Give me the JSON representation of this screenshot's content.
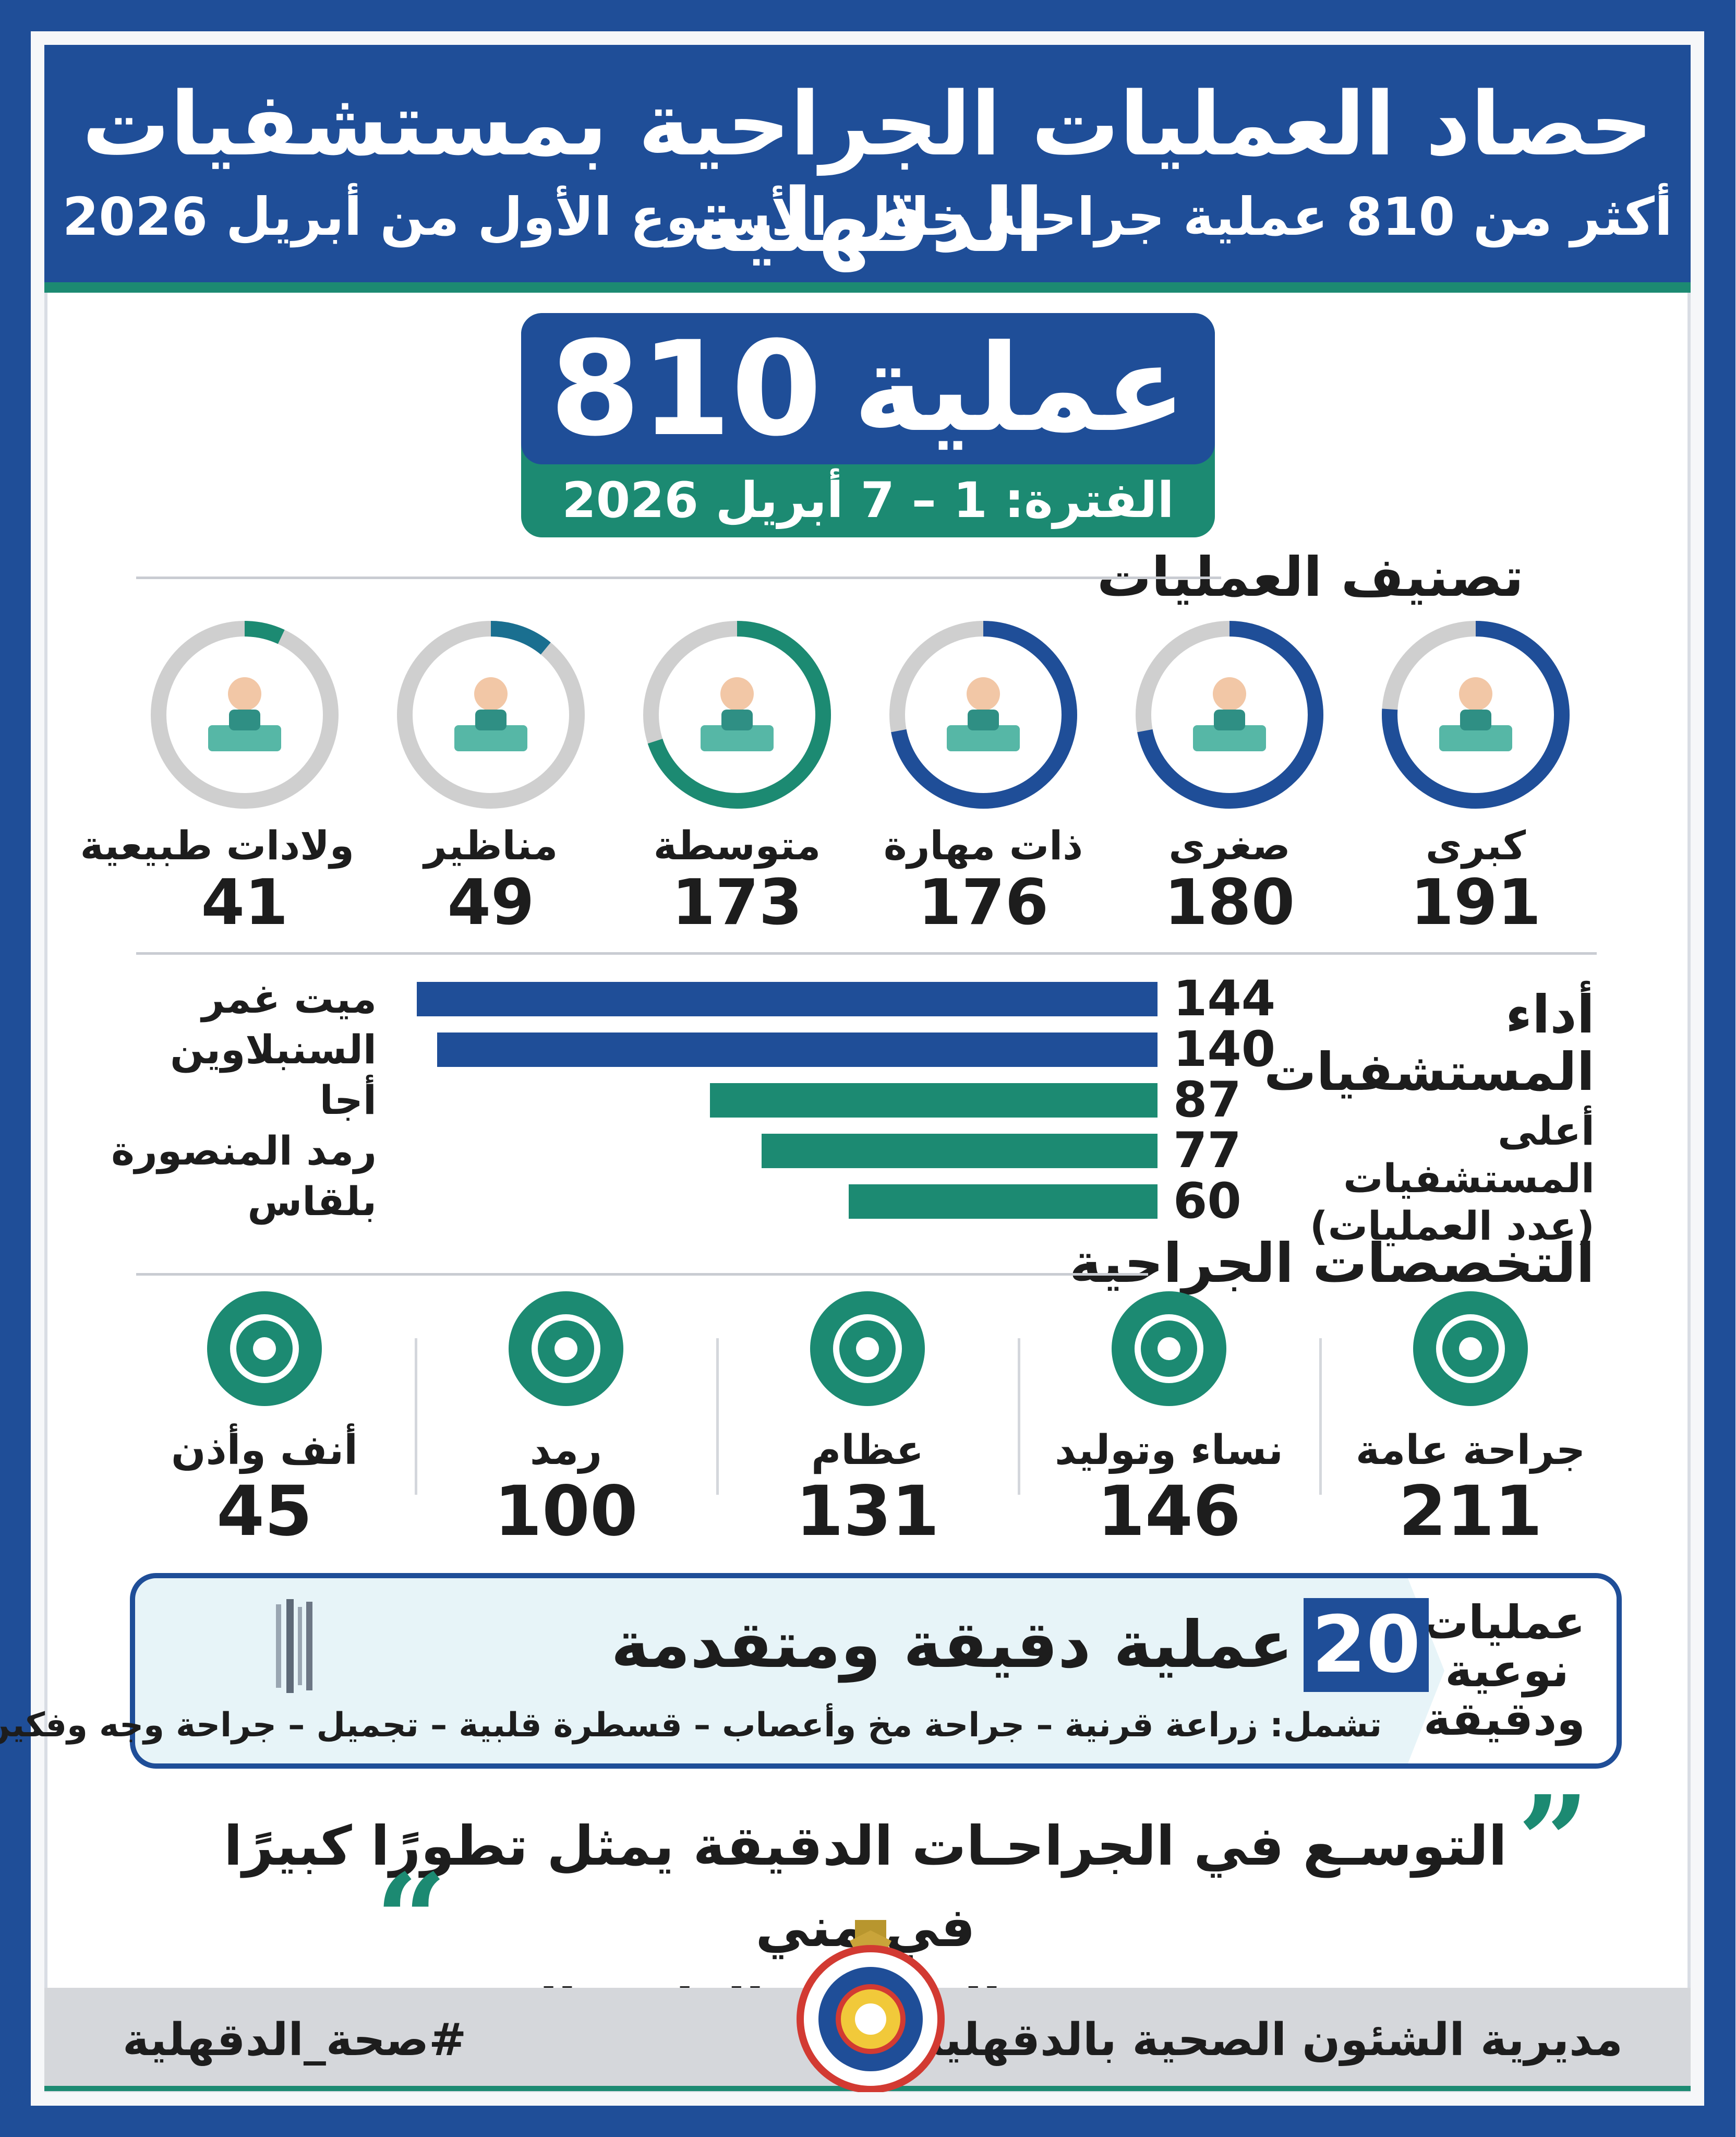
{
  "header": {
    "title": "حصاد العمليات الجراحية بمستشفيات الدقهلية",
    "subtitle": "أكثر من 810 عملية جراحية خلال الأسبوع الأول من أبريل 2026"
  },
  "total": {
    "number": "810",
    "word": "عملية",
    "period": "الفترة: 1 – 7 أبريل 2026"
  },
  "classification": {
    "title": "تصنيف العمليات",
    "items": [
      {
        "label": "كبرى",
        "value": 191,
        "fraction": 0.76,
        "color": "#1f4e98",
        "icon": "surgeon-team-icon"
      },
      {
        "label": "صغرى",
        "value": 180,
        "fraction": 0.72,
        "color": "#1f4e98",
        "icon": "minor-surgery-icon"
      },
      {
        "label": "ذات مهارة",
        "value": 176,
        "fraction": 0.72,
        "color": "#1f4e98",
        "icon": "skilled-surgeon-icon"
      },
      {
        "label": "متوسطة",
        "value": 173,
        "fraction": 0.7,
        "color": "#1c8a72",
        "icon": "scalpel-table-icon"
      },
      {
        "label": "مناظير",
        "value": 49,
        "fraction": 0.11,
        "color": "#1a6f90",
        "icon": "endoscope-icon"
      },
      {
        "label": "ولادات طبيعية",
        "value": 41,
        "fraction": 0.07,
        "color": "#1c8a72",
        "icon": "mother-baby-icon"
      }
    ]
  },
  "hospitals": {
    "title": "أداء المستشفيات",
    "subtitle": "أعلى المستشفيات (عدد العمليات)",
    "chart_data": {
      "type": "bar",
      "categories": [
        "ميت غمر",
        "السنبلاوين",
        "أجا",
        "رمد المنصورة",
        "بلقاس"
      ],
      "values": [
        144,
        140,
        87,
        77,
        60
      ],
      "colors": [
        "#1f4e98",
        "#1f4e98",
        "#1c8a72",
        "#1c8a72",
        "#1c8a72"
      ],
      "xlim": [
        0,
        144
      ]
    }
  },
  "specialties": {
    "title": "التخصصات الجراحية",
    "items": [
      {
        "label": "جراحة عامة",
        "value": 211,
        "icon": "scalpel-icon"
      },
      {
        "label": "نساء وتوليد",
        "value": 146,
        "icon": "pregnant-woman-icon"
      },
      {
        "label": "عظام",
        "value": 131,
        "icon": "knee-joint-icon"
      },
      {
        "label": "رمد",
        "value": 100,
        "icon": "eye-icon"
      },
      {
        "label": "أنف وأذن",
        "value": 45,
        "icon": "nose-ear-icon"
      }
    ]
  },
  "advanced": {
    "side_label": "عمليات نوعية ودقيقة",
    "number": "20",
    "title": "عملية دقيقة ومتقدمة",
    "includes": "تشمل: زراعة قرنية – جراحة مخ وأعصاب – قسطرة قلبية – تجميل – جراحة وجه وفكين"
  },
  "quote": {
    "line1": "التوسـع في الجراحـات الدقيقة يمثل تطورًا كبيرًا في مني",
    "line2": "مستوى جودة الخدمات الطبية المقدمة"
  },
  "footer": {
    "organization": "مديرية الشئون الصحية بالدقهلية",
    "hashtag": "#صحة_الدقهلية"
  },
  "colors": {
    "navy": "#1f4e98",
    "teal": "#1c8a72",
    "grey_ring": "#cfcfcf"
  }
}
